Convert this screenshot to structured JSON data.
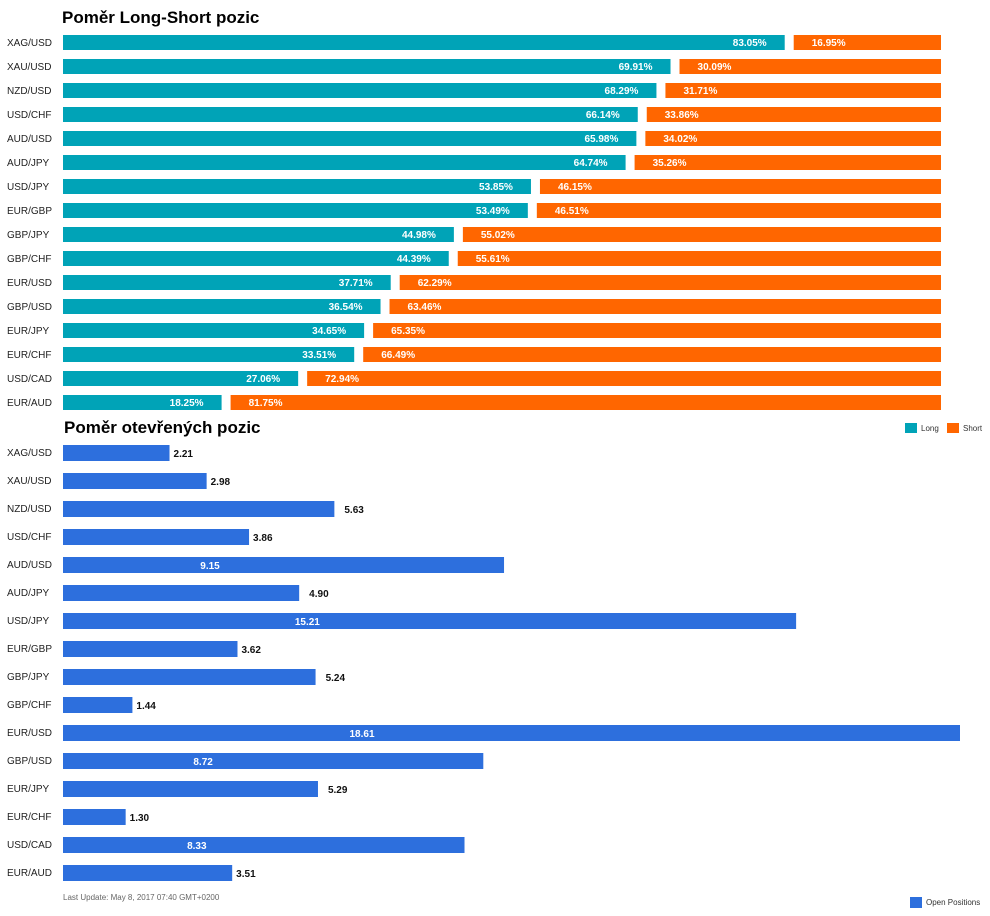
{
  "chart_data": [
    {
      "type": "bar",
      "orientation": "horizontal",
      "stacked": true,
      "title": "Poměr Long-Short pozic",
      "categories": [
        "XAG/USD",
        "XAU/USD",
        "NZD/USD",
        "USD/CHF",
        "AUD/USD",
        "AUD/JPY",
        "USD/JPY",
        "EUR/GBP",
        "GBP/JPY",
        "GBP/CHF",
        "EUR/USD",
        "GBP/USD",
        "EUR/JPY",
        "EUR/CHF",
        "USD/CAD",
        "EUR/AUD"
      ],
      "series": [
        {
          "name": "Long",
          "color": "#00a3b7",
          "values": [
            83.05,
            69.91,
            68.29,
            66.14,
            65.98,
            64.74,
            53.85,
            53.49,
            44.98,
            44.39,
            37.71,
            36.54,
            34.65,
            33.51,
            27.06,
            18.25
          ],
          "labels": [
            "83.05%",
            "69.91%",
            "68.29%",
            "66.14%",
            "65.98%",
            "64.74%",
            "53.85%",
            "53.49%",
            "44.98%",
            "44.39%",
            "37.71%",
            "36.54%",
            "34.65%",
            "33.51%",
            "27.06%",
            "18.25%"
          ]
        },
        {
          "name": "Short",
          "color": "#ff6600",
          "values": [
            16.95,
            30.09,
            31.71,
            33.86,
            34.02,
            35.26,
            46.15,
            46.51,
            55.02,
            55.61,
            62.29,
            63.46,
            65.35,
            66.49,
            72.94,
            81.75
          ],
          "labels": [
            "16.95%",
            "30.09%",
            "31.71%",
            "33.86%",
            "34.02%",
            "35.26%",
            "46.15%",
            "46.51%",
            "55.02%",
            "55.61%",
            "62.29%",
            "63.46%",
            "65.35%",
            "66.49%",
            "72.94%",
            "81.75%"
          ]
        }
      ],
      "xlim": [
        0,
        100
      ],
      "legend": "right"
    },
    {
      "type": "bar",
      "orientation": "horizontal",
      "title": "Poměr otevřených pozic",
      "categories": [
        "XAG/USD",
        "XAU/USD",
        "NZD/USD",
        "USD/CHF",
        "AUD/USD",
        "AUD/JPY",
        "USD/JPY",
        "EUR/GBP",
        "GBP/JPY",
        "GBP/CHF",
        "EUR/USD",
        "GBP/USD",
        "EUR/JPY",
        "EUR/CHF",
        "USD/CAD",
        "EUR/AUD"
      ],
      "series": [
        {
          "name": "Open Positions",
          "color": "#2d6fdd",
          "values": [
            2.21,
            2.98,
            5.63,
            3.86,
            9.15,
            4.9,
            15.21,
            3.62,
            5.24,
            1.44,
            18.61,
            8.72,
            5.29,
            1.3,
            8.33,
            3.51
          ],
          "labels": [
            "2.21",
            "2.98",
            "5.63",
            "3.86",
            "9.15",
            "4.90",
            "15.21",
            "3.62",
            "5.24",
            "1.44",
            "18.61",
            "8.72",
            "5.29",
            "1.30",
            "8.33",
            "3.51"
          ]
        }
      ],
      "xlim": [
        0,
        18.61
      ],
      "legend": "bottom-right"
    }
  ],
  "footer": {
    "last_update": "Last Update: May 8, 2017 07:40 GMT+0200"
  }
}
